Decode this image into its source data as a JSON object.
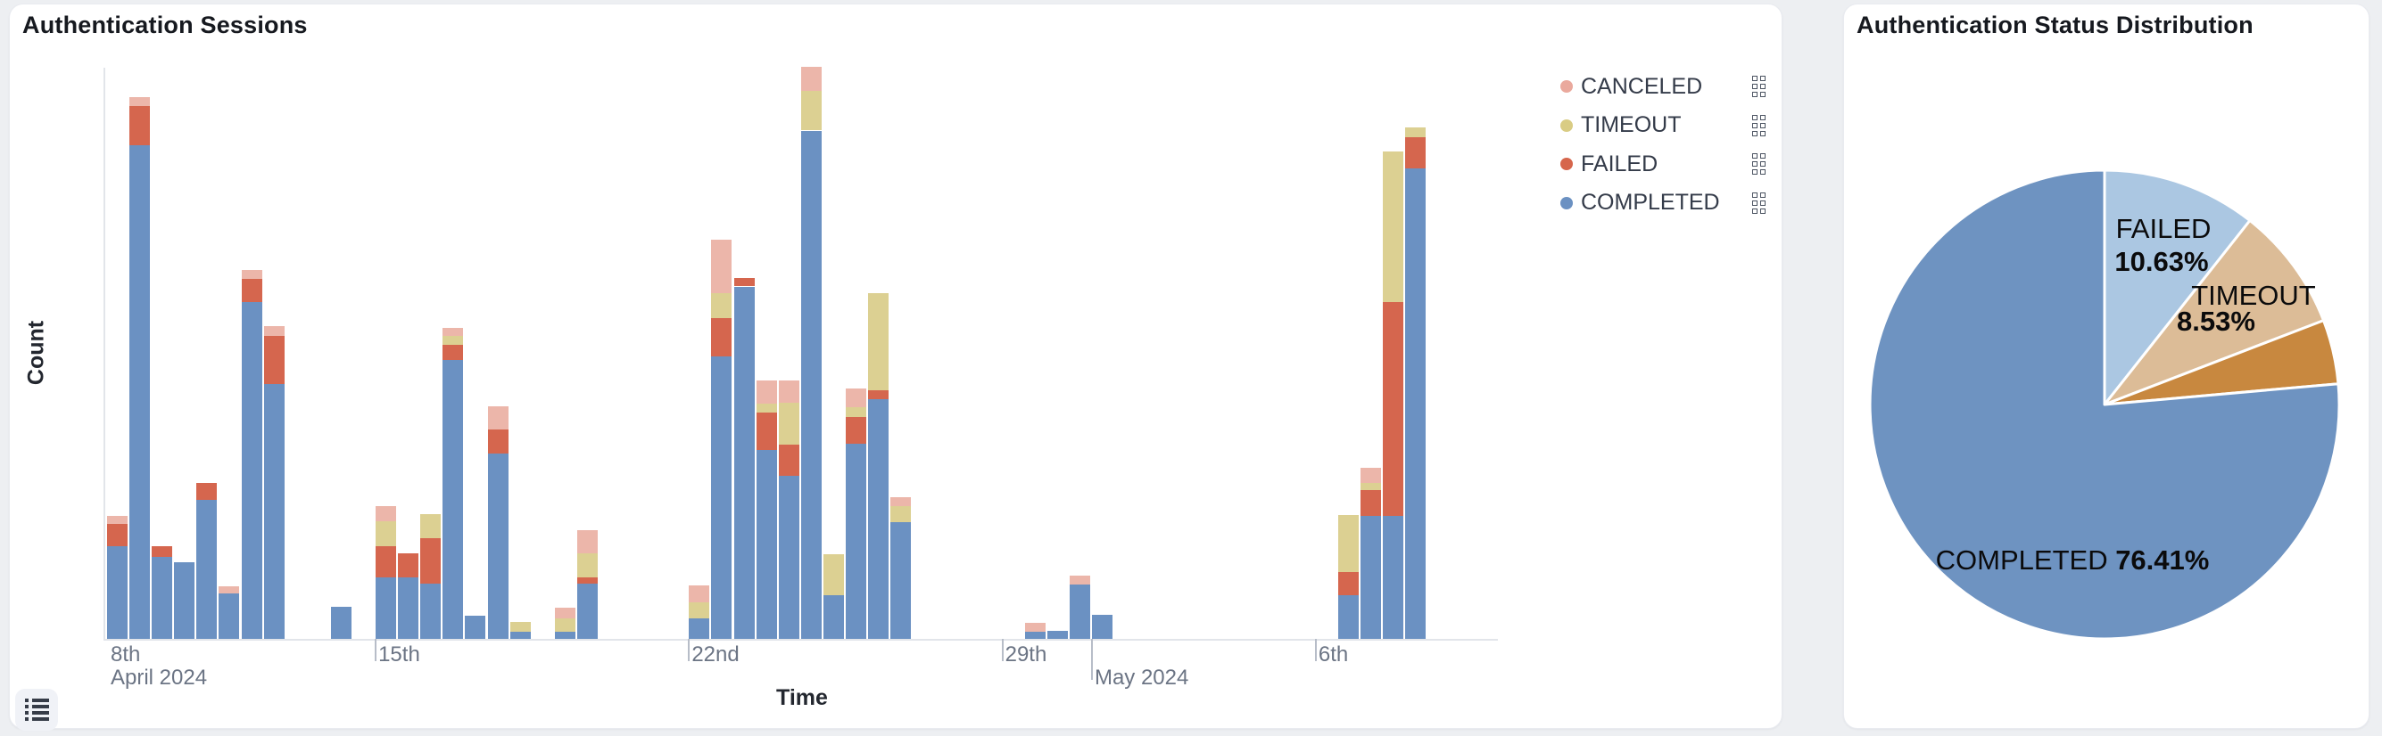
{
  "cards": {
    "sessions": {
      "title": "Authentication Sessions",
      "legend": [
        {
          "label": "CANCELED",
          "color": "#eaa99d"
        },
        {
          "label": "TIMEOUT",
          "color": "#d9cc84"
        },
        {
          "label": "FAILED",
          "color": "#d6664c"
        },
        {
          "label": "COMPLETED",
          "color": "#6b91c2"
        }
      ],
      "dataview_button": "toggle-data-view"
    },
    "distribution": {
      "title": "Authentication Status Distribution"
    }
  },
  "chart_data": [
    {
      "type": "bar",
      "title": "Authentication Sessions",
      "xlabel": "Time",
      "ylabel": "Count",
      "stacked": true,
      "x_axis_type": "time, 12-hour buckets starting 2024-04-09 00:00",
      "y_axis_note": "no numeric y tick labels visible; segment values are percent of y-axis max",
      "ylim": [
        0,
        100
      ],
      "grid": false,
      "legend_position": "top-right, vertical",
      "series_order_bottom_to_top": [
        "COMPLETED",
        "FAILED",
        "TIMEOUT",
        "CANCELED"
      ],
      "colors": {
        "COMPLETED": "#6b91c2",
        "FAILED": "#d5664e",
        "TIMEOUT": "#dcd092",
        "CANCELED": "#ecb6aa"
      },
      "x_ticks": [
        {
          "label": "8th",
          "sublabel": "April 2024",
          "bucket": -2,
          "line": false,
          "clamped_to_axis_start": true
        },
        {
          "label": "15th",
          "bucket": 12,
          "line": true
        },
        {
          "label": "22nd",
          "bucket": 26,
          "line": true
        },
        {
          "label": "29th",
          "bucket": 40,
          "line": true
        },
        {
          "label": "May 2024",
          "bucket": 44,
          "line": true,
          "month": true
        },
        {
          "label": "6th",
          "bucket": 54,
          "line": true
        }
      ],
      "keys": {
        "b": "bucket index (half-day)",
        "c": "COMPLETED",
        "f": "FAILED",
        "t": "TIMEOUT",
        "x": "CANCELED"
      },
      "bars": [
        {
          "b": 0,
          "c": 16.3,
          "f": 3.9,
          "t": 0,
          "x": 1.4
        },
        {
          "b": 1,
          "c": 86.4,
          "f": 6.9,
          "t": 0,
          "x": 1.6
        },
        {
          "b": 2,
          "c": 14.4,
          "f": 1.9,
          "t": 0,
          "x": 0
        },
        {
          "b": 3,
          "c": 13.4,
          "f": 0,
          "t": 0,
          "x": 0
        },
        {
          "b": 4,
          "c": 24.4,
          "f": 2.9,
          "t": 0,
          "x": 0
        },
        {
          "b": 5,
          "c": 8.0,
          "f": 0,
          "t": 0,
          "x": 1.2
        },
        {
          "b": 6,
          "c": 59.0,
          "f": 4.0,
          "t": 0,
          "x": 1.6
        },
        {
          "b": 7,
          "c": 44.6,
          "f": 8.5,
          "t": 0,
          "x": 1.6
        },
        {
          "b": 10,
          "c": 5.6,
          "f": 0,
          "t": 0,
          "x": 0
        },
        {
          "b": 12,
          "c": 10.8,
          "f": 5.5,
          "t": 4.3,
          "x": 2.7
        },
        {
          "b": 13,
          "c": 10.8,
          "f": 4.2,
          "t": 0,
          "x": 0
        },
        {
          "b": 14,
          "c": 9.6,
          "f": 8.1,
          "t": 4.2,
          "x": 0
        },
        {
          "b": 15,
          "c": 48.8,
          "f": 2.7,
          "t": 1.5,
          "x": 1.4
        },
        {
          "b": 16,
          "c": 4.1,
          "f": 0,
          "t": 0,
          "x": 0
        },
        {
          "b": 17,
          "c": 32.5,
          "f": 4.1,
          "t": 0,
          "x": 4.1
        },
        {
          "b": 18,
          "c": 1.3,
          "f": 0,
          "t": 1.6,
          "x": 0
        },
        {
          "b": 20,
          "c": 1.3,
          "f": 0,
          "t": 2.3,
          "x": 1.8
        },
        {
          "b": 21,
          "c": 9.6,
          "f": 1.2,
          "t": 4.1,
          "x": 4.2
        },
        {
          "b": 26,
          "c": 3.6,
          "f": 0,
          "t": 2.8,
          "x": 2.9
        },
        {
          "b": 27,
          "c": 49.5,
          "f": 6.7,
          "t": 4.3,
          "x": 9.4
        },
        {
          "b": 28,
          "c": 61.7,
          "f": 1.5,
          "t": 0,
          "x": 0
        },
        {
          "b": 29,
          "c": 33.0,
          "f": 6.7,
          "t": 1.5,
          "x": 4.0
        },
        {
          "b": 30,
          "c": 28.5,
          "f": 5.5,
          "t": 7.3,
          "x": 4.0
        },
        {
          "b": 31,
          "c": 89.0,
          "f": 0,
          "t": 7.0,
          "x": 4.1
        },
        {
          "b": 32,
          "c": 7.7,
          "f": 0,
          "t": 7.1,
          "x": 0
        },
        {
          "b": 33,
          "c": 34.2,
          "f": 4.6,
          "t": 1.7,
          "x": 3.4
        },
        {
          "b": 34,
          "c": 42.0,
          "f": 1.5,
          "t": 17.1,
          "x": 0
        },
        {
          "b": 35,
          "c": 20.5,
          "f": 0,
          "t": 2.8,
          "x": 1.5
        },
        {
          "b": 41,
          "c": 1.3,
          "f": 0,
          "t": 0,
          "x": 1.5
        },
        {
          "b": 42,
          "c": 1.4,
          "f": 0,
          "t": 0,
          "x": 0
        },
        {
          "b": 43,
          "c": 9.5,
          "f": 0,
          "t": 0,
          "x": 1.5
        },
        {
          "b": 44,
          "c": 4.2,
          "f": 0,
          "t": 0,
          "x": 0
        },
        {
          "b": 55,
          "c": 7.7,
          "f": 4.0,
          "t": 10.0,
          "x": 0
        },
        {
          "b": 56,
          "c": 21.6,
          "f": 4.5,
          "t": 1.2,
          "x": 2.6
        },
        {
          "b": 57,
          "c": 21.6,
          "f": 37.3,
          "t": 26.5,
          "x": 0
        },
        {
          "b": 58,
          "c": 82.4,
          "f": 5.4,
          "t": 1.7,
          "x": 0
        }
      ]
    },
    {
      "type": "pie",
      "title": "Authentication Status Distribution",
      "start": "12 o'clock, clockwise",
      "slices": [
        {
          "label": "FAILED",
          "pct": 10.63,
          "pct_label": "10.63%",
          "color": "#abc7e2",
          "label_visible": true
        },
        {
          "label": "TIMEOUT",
          "pct": 8.53,
          "pct_label": "8.53%",
          "color": "#dcbc97",
          "label_visible": true
        },
        {
          "label": "CANCELED",
          "pct": 4.43,
          "pct_label": "4.43%",
          "color": "#c8883f",
          "label_visible": false
        },
        {
          "label": "COMPLETED",
          "pct": 76.41,
          "pct_label": "76.41%",
          "color": "#6e93c1",
          "label_visible": true
        }
      ]
    }
  ]
}
